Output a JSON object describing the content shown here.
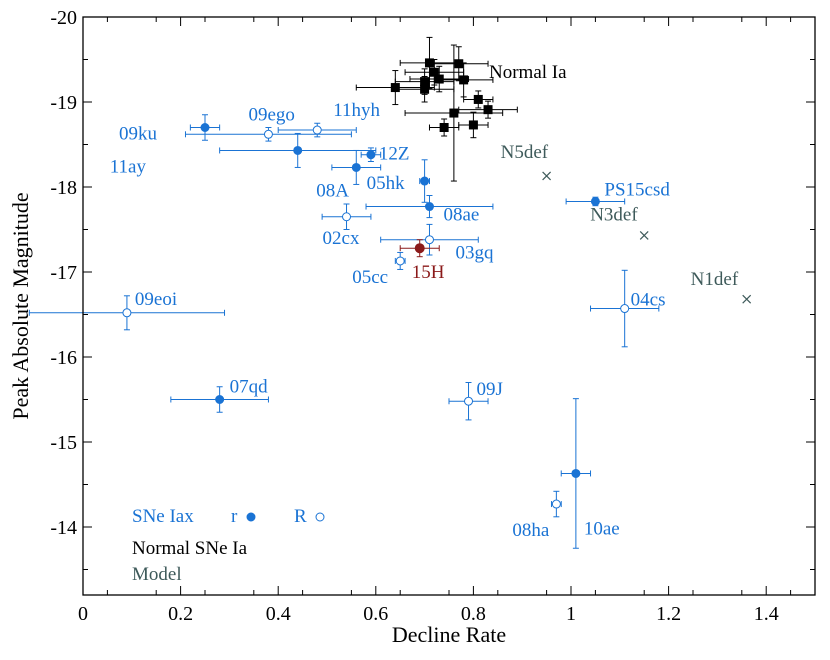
{
  "chart_data": {
    "type": "scatter",
    "title": "",
    "xlabel": "Decline Rate",
    "ylabel": "Peak Absolute Magnitude",
    "xlim": [
      0,
      1.5
    ],
    "ylim": [
      -13.2,
      -20
    ],
    "x_ticks": [
      0,
      0.2,
      0.4,
      0.6,
      0.8,
      1,
      1.2,
      1.4
    ],
    "x_tick_labels": [
      "0",
      "0.2",
      "0.4",
      "0.6",
      "0.8",
      "1",
      "1.2",
      "1.4"
    ],
    "y_ticks": [
      -14,
      -15,
      -16,
      -17,
      -18,
      -19,
      -20
    ],
    "y_tick_labels": [
      "-14",
      "-15",
      "-16",
      "-17",
      "-18",
      "-19",
      "-20"
    ],
    "colors": {
      "iax": "#1a73d4",
      "normal": "#000000",
      "model": "#3e5a5a",
      "highlight": "#8b1a1a"
    },
    "series": [
      {
        "name": "SNe Iax",
        "points": [
          {
            "label": "09ku",
            "x": 0.25,
            "y": -18.7,
            "xerr": 0.03,
            "yerr": 0.15,
            "filled": true
          },
          {
            "label": "09ego",
            "x": 0.38,
            "y": -18.62,
            "xerr": 0.17,
            "yerr": 0.08,
            "filled": false
          },
          {
            "label": "11hyh",
            "x": 0.48,
            "y": -18.67,
            "xerr": 0.08,
            "yerr": 0.08,
            "filled": false
          },
          {
            "label": "11ay",
            "x": 0.44,
            "y": -18.43,
            "xerr": 0.16,
            "yerr": 0.2,
            "filled": true
          },
          {
            "label": "12Z",
            "x": 0.59,
            "y": -18.38,
            "xerr": 0.02,
            "yerr": 0.08,
            "filled": true
          },
          {
            "label": "08A",
            "x": 0.56,
            "y": -18.23,
            "xerr": 0.05,
            "yerr": 0.2,
            "filled": true
          },
          {
            "label": "05hk",
            "x": 0.7,
            "y": -18.07,
            "xerr": 0.01,
            "yerr": 0.25,
            "filled": true
          },
          {
            "label": "08ae",
            "x": 0.71,
            "y": -17.77,
            "xerr": 0.13,
            "yerr": 0.13,
            "filled": true
          },
          {
            "label": "02cx",
            "x": 0.54,
            "y": -17.65,
            "xerr": 0.05,
            "yerr": 0.15,
            "filled": false
          },
          {
            "label": "03gq",
            "x": 0.71,
            "y": -17.38,
            "xerr": 0.1,
            "yerr": 0.18,
            "filled": false
          },
          {
            "label": "05cc",
            "x": 0.65,
            "y": -17.13,
            "xerr": 0.01,
            "yerr": 0.1,
            "filled": false
          },
          {
            "label": "PS15csd",
            "x": 1.05,
            "y": -17.83,
            "xerr": 0.06,
            "yerr": 0.05,
            "filled": true
          },
          {
            "label": "04cs",
            "x": 1.11,
            "y": -16.57,
            "xerr": 0.07,
            "yerr": 0.45,
            "filled": false
          },
          {
            "label": "09eoi",
            "x": 0.09,
            "y": -16.52,
            "xerr": 0.2,
            "yerr": 0.2,
            "filled": false
          },
          {
            "label": "07qd",
            "x": 0.28,
            "y": -15.5,
            "xerr": 0.1,
            "yerr": 0.15,
            "filled": true
          },
          {
            "label": "09J",
            "x": 0.79,
            "y": -15.48,
            "xerr": 0.04,
            "yerr": 0.22,
            "filled": false
          },
          {
            "label": "10ae",
            "x": 1.01,
            "y": -14.63,
            "xerr": 0.03,
            "yerr": 0.88,
            "filled": true
          },
          {
            "label": "08ha",
            "x": 0.97,
            "y": -14.27,
            "xerr": 0.01,
            "yerr": 0.15,
            "filled": false
          }
        ]
      },
      {
        "name": "Normal SNe Ia",
        "points": [
          {
            "x": 0.71,
            "y": -19.46,
            "xerr": 0.06,
            "yerr": 0.3
          },
          {
            "x": 0.77,
            "y": -19.45,
            "xerr": 0.06,
            "yerr": 0.2
          },
          {
            "x": 0.72,
            "y": -19.35,
            "xerr": 0.06,
            "yerr": 0.15
          },
          {
            "x": 0.73,
            "y": -19.27,
            "xerr": 0.06,
            "yerr": 0.15
          },
          {
            "x": 0.7,
            "y": -19.24,
            "xerr": 0.06,
            "yerr": 0.15
          },
          {
            "x": 0.78,
            "y": -19.26,
            "xerr": 0.06,
            "yerr": 0.2
          },
          {
            "x": 0.64,
            "y": -19.17,
            "xerr": 0.08,
            "yerr": 0.2
          },
          {
            "x": 0.7,
            "y": -19.15,
            "xerr": 0.06,
            "yerr": 0.15
          },
          {
            "x": 0.81,
            "y": -19.03,
            "xerr": 0.03,
            "yerr": 0.1
          },
          {
            "x": 0.83,
            "y": -18.91,
            "xerr": 0.06,
            "yerr": 0.1
          },
          {
            "x": 0.76,
            "y": -18.87,
            "xerr": 0.1,
            "yerr": 0.8
          },
          {
            "x": 0.74,
            "y": -18.7,
            "xerr": 0.03,
            "yerr": 0.1
          },
          {
            "x": 0.8,
            "y": -18.73,
            "xerr": 0.03,
            "yerr": 0.15
          }
        ]
      },
      {
        "name": "Model",
        "points": [
          {
            "label": "N5def",
            "x": 0.95,
            "y": -18.13
          },
          {
            "label": "N3def",
            "x": 1.15,
            "y": -17.43
          },
          {
            "label": "N1def",
            "x": 1.36,
            "y": -16.68
          }
        ]
      },
      {
        "name": "15H",
        "points": [
          {
            "label": "15H",
            "x": 0.69,
            "y": -17.28,
            "xerr": 0.04,
            "yerr": 0.1
          }
        ]
      }
    ],
    "annotations": [
      "Normal Ia"
    ],
    "legend": {
      "position": "bottom-left",
      "iax": "SNe Iax",
      "normal": "Normal SNe Ia",
      "model": "Model",
      "r_label": "r",
      "R_label": "R"
    }
  }
}
